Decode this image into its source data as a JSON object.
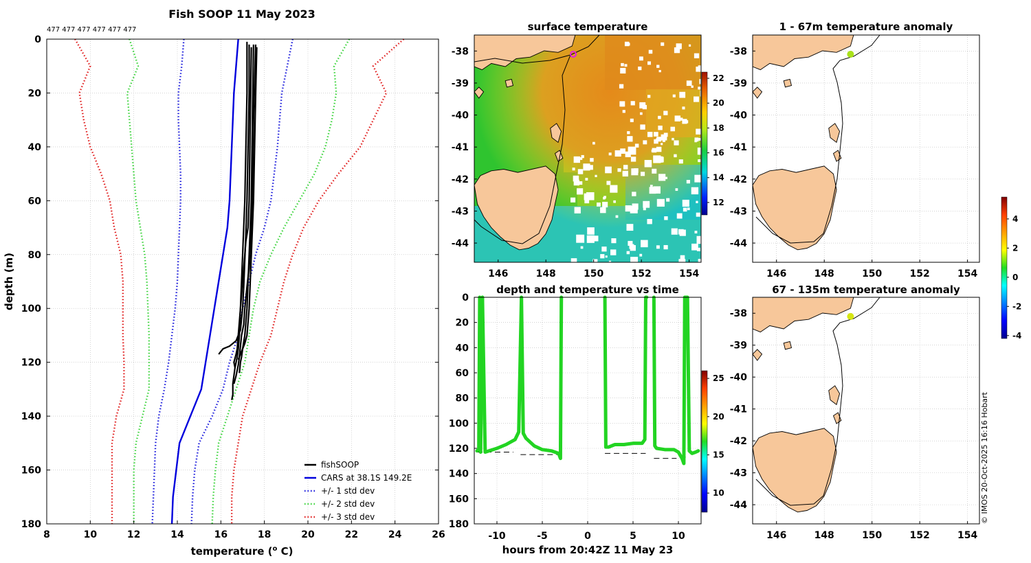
{
  "colors": {
    "cars": "#0000dd",
    "std1": "#1a1adc",
    "std2": "#3ad43a",
    "std3": "#e01a1a",
    "fish": "#000000",
    "land": "#f7c79a",
    "trace": "#22d422",
    "grid": "#b8b8b8"
  },
  "chart_data": [
    {
      "id": "profile",
      "type": "line",
      "title": "Fish SOOP 11 May 2023",
      "xlabel": "temperature (",
      "xlabel_sup": "o",
      "xlabel_tail": " C)",
      "ylabel": "depth (m)",
      "xlim": [
        8,
        26
      ],
      "ylim": [
        0,
        180
      ],
      "xticks": [
        "8",
        "10",
        "12",
        "14",
        "16",
        "18",
        "20",
        "22",
        "24",
        "26"
      ],
      "yticks": [
        "0",
        "20",
        "40",
        "60",
        "80",
        "100",
        "120",
        "140",
        "160",
        "180"
      ],
      "top_annotation": "477 477 477 477 477 477",
      "legend": [
        {
          "label": "fishSOOP",
          "style": "fish"
        },
        {
          "label": "CARS at 38.1S 149.2E",
          "style": "cars"
        },
        {
          "label": "+/- 1 std dev",
          "style": "std1"
        },
        {
          "label": "+/- 2 std dev",
          "style": "std2"
        },
        {
          "label": "+/- 3 std dev",
          "style": "std3"
        }
      ],
      "depths": [
        0,
        10,
        20,
        30,
        40,
        50,
        60,
        70,
        80,
        90,
        100,
        110,
        120,
        130,
        140,
        150,
        160,
        170,
        180
      ],
      "series": [
        {
          "name": "CARS",
          "style": "cars",
          "values": [
            16.8,
            16.7,
            16.6,
            16.55,
            16.5,
            16.45,
            16.4,
            16.3,
            16.1,
            15.9,
            15.7,
            15.5,
            15.3,
            15.1,
            14.6,
            14.1,
            13.95,
            13.8,
            13.75
          ]
        },
        {
          "name": "-1 std",
          "style": "std1",
          "values": [
            14.3,
            14.2,
            14.05,
            14.05,
            14.1,
            14.15,
            14.15,
            14.1,
            14.05,
            14.0,
            13.9,
            13.75,
            13.6,
            13.4,
            13.15,
            13.0,
            12.95,
            12.9,
            12.85
          ]
        },
        {
          "name": "+1 std",
          "style": "std1",
          "values": [
            19.3,
            19.05,
            18.8,
            18.7,
            18.6,
            18.45,
            18.3,
            18.0,
            17.6,
            17.3,
            17.0,
            16.8,
            16.4,
            16.1,
            15.6,
            15.0,
            14.8,
            14.7,
            14.65
          ]
        },
        {
          "name": "-2 std",
          "style": "std2",
          "values": [
            11.8,
            12.2,
            11.7,
            11.8,
            11.9,
            12.0,
            12.1,
            12.3,
            12.5,
            12.6,
            12.65,
            12.7,
            12.7,
            12.7,
            12.4,
            12.1,
            12.0,
            12.0,
            12.0
          ]
        },
        {
          "name": "+2 std",
          "style": "std2",
          "values": [
            21.9,
            21.2,
            21.3,
            21.1,
            20.8,
            20.3,
            19.6,
            18.9,
            18.3,
            17.8,
            17.5,
            17.3,
            17.1,
            16.7,
            16.3,
            15.9,
            15.75,
            15.65,
            15.6
          ]
        },
        {
          "name": "-3 std",
          "style": "std3",
          "values": [
            9.3,
            10.0,
            9.5,
            9.7,
            10.0,
            10.5,
            10.9,
            11.1,
            11.4,
            11.5,
            11.5,
            11.5,
            11.55,
            11.55,
            11.2,
            11.0,
            11.0,
            11.0,
            11.0
          ]
        },
        {
          "name": "+3 std",
          "style": "std3",
          "values": [
            24.4,
            23.0,
            23.6,
            23.0,
            22.4,
            21.4,
            20.5,
            19.8,
            19.3,
            18.9,
            18.6,
            18.3,
            17.8,
            17.4,
            17.0,
            16.8,
            16.6,
            16.5,
            16.5
          ]
        }
      ],
      "fish_casts": [
        {
          "depths": [
            3,
            30,
            60,
            70,
            75,
            80,
            85,
            90,
            95,
            100,
            105,
            110,
            115,
            117,
            120,
            122,
            125,
            128,
            132,
            134
          ],
          "temps": [
            17.4,
            17.35,
            17.3,
            17.25,
            17.15,
            17.1,
            17.05,
            17.0,
            16.95,
            16.9,
            16.85,
            16.8,
            16.75,
            16.7,
            16.6,
            16.65,
            16.6,
            16.55,
            16.55,
            16.5
          ]
        },
        {
          "depths": [
            2,
            30,
            60,
            70,
            78,
            85,
            92,
            100,
            106,
            110,
            114,
            118,
            121,
            123,
            125,
            128
          ],
          "temps": [
            17.6,
            17.5,
            17.45,
            17.4,
            17.35,
            17.3,
            17.2,
            17.1,
            17.05,
            16.95,
            16.9,
            16.85,
            16.8,
            16.75,
            16.7,
            16.6
          ]
        },
        {
          "depths": [
            3,
            20,
            40,
            60,
            70,
            80,
            90,
            100,
            105,
            110,
            113,
            115,
            117,
            119
          ],
          "temps": [
            17.65,
            17.6,
            17.55,
            17.5,
            17.45,
            17.4,
            17.35,
            17.3,
            17.25,
            17.2,
            17.1,
            17.0,
            16.9,
            16.8
          ]
        },
        {
          "depths": [
            2,
            20,
            40,
            60,
            72,
            82,
            92,
            100,
            108,
            112,
            114,
            115,
            116,
            117
          ],
          "temps": [
            17.3,
            17.3,
            17.25,
            17.2,
            17.15,
            17.1,
            17.05,
            17.0,
            16.9,
            16.7,
            16.4,
            16.1,
            16.0,
            15.9
          ]
        },
        {
          "depths": [
            1,
            20,
            40,
            60,
            70,
            80,
            90,
            100,
            110,
            115,
            118,
            120,
            122
          ],
          "temps": [
            17.2,
            17.2,
            17.15,
            17.1,
            17.05,
            17.0,
            16.95,
            16.9,
            16.85,
            16.8,
            16.75,
            16.7,
            16.65
          ]
        },
        {
          "depths": [
            2,
            30,
            60,
            80,
            100,
            110,
            115,
            118,
            120,
            124
          ],
          "temps": [
            17.5,
            17.45,
            17.4,
            17.3,
            17.2,
            17.1,
            17.0,
            16.95,
            16.9,
            16.85
          ]
        }
      ]
    },
    {
      "id": "sst_map",
      "type": "heatmap",
      "title": "surface temperature",
      "lon_range": [
        145,
        154.5
      ],
      "lat_range": [
        -44.6,
        -37.5
      ],
      "xticks": [
        "146",
        "148",
        "150",
        "152",
        "154"
      ],
      "yticks": [
        "-38",
        "-39",
        "-40",
        "-41",
        "-42",
        "-43",
        "-44"
      ],
      "colorbar_range": [
        11,
        22.5
      ],
      "colorbar_ticks": [
        "12",
        "14",
        "16",
        "18",
        "20",
        "22"
      ],
      "marker": {
        "lon": 149.1,
        "lat": -38.1
      }
    },
    {
      "id": "depth_time",
      "type": "scatter",
      "title": "depth and temperature vs time",
      "xlabel": "hours from 20:42Z 11 May 23",
      "xlim": [
        -12.5,
        12.5
      ],
      "ylim": [
        0,
        180
      ],
      "xticks": [
        "-10",
        "-5",
        "0",
        "5",
        "10"
      ],
      "yticks": [
        "0",
        "20",
        "40",
        "60",
        "80",
        "100",
        "120",
        "140",
        "160",
        "180"
      ],
      "colorbar_range": [
        7.5,
        26
      ],
      "colorbar_ticks": [
        "10",
        "15",
        "20",
        "25"
      ],
      "segments": [
        {
          "t": [
            -12.2,
            -12.0,
            -11.9,
            -11.8,
            -11.6
          ],
          "d": [
            122,
            121,
            0,
            123,
            0
          ]
        },
        {
          "t": [
            -11.6,
            -11.3,
            -10,
            -9,
            -8,
            -7.6,
            -7.3,
            -7.1,
            -6.8,
            -5.9,
            -5,
            -4,
            -3.2,
            -3,
            -2.9
          ],
          "d": [
            0,
            123,
            120,
            117,
            113,
            107,
            0,
            108,
            112,
            118,
            121,
            122,
            124,
            128,
            0
          ]
        },
        {
          "t": [
            1.9,
            2.0,
            2.3,
            3,
            4,
            5,
            6,
            6.3,
            6.4,
            6.5
          ],
          "d": [
            0,
            119,
            119,
            117,
            117,
            116,
            116,
            113,
            0,
            0
          ]
        },
        {
          "t": [
            7.3,
            7.4,
            7.6,
            8.5,
            9.5,
            10,
            10.4,
            10.6,
            10.7,
            10.8,
            11.0,
            11.2,
            11.5,
            11.9,
            12.2
          ],
          "d": [
            0,
            118,
            120,
            121,
            121,
            123,
            128,
            132,
            0,
            0,
            0,
            122,
            124,
            123,
            122
          ]
        }
      ],
      "bottom_lines": [
        {
          "t": [
            -12.2,
            -8.2
          ],
          "d": 123
        },
        {
          "t": [
            -7.4,
            -2.9
          ],
          "d": 125
        },
        {
          "t": [
            1.9,
            6.4
          ],
          "d": 124
        },
        {
          "t": [
            7.3,
            9.8
          ],
          "d": 128
        },
        {
          "t": [
            10.2,
            10.9
          ],
          "d": 127
        }
      ]
    },
    {
      "id": "anom_upper",
      "type": "heatmap",
      "title": "1 - 67m temperature anomaly",
      "lon_range": [
        145,
        154.5
      ],
      "lat_range": [
        -44.6,
        -37.5
      ],
      "xticks": [
        "146",
        "148",
        "150",
        "152",
        "154"
      ],
      "yticks": [
        "-38",
        "-39",
        "-40",
        "-41",
        "-42",
        "-43",
        "-44"
      ],
      "marker": {
        "lon": 149.1,
        "lat": -38.1,
        "color": "#a9e21a"
      }
    },
    {
      "id": "anom_lower",
      "type": "heatmap",
      "title": "67 - 135m temperature anomaly",
      "lon_range": [
        145,
        154.5
      ],
      "lat_range": [
        -44.6,
        -37.5
      ],
      "xticks": [
        "146",
        "148",
        "150",
        "152",
        "154"
      ],
      "yticks": [
        "-38",
        "-39",
        "-40",
        "-41",
        "-42",
        "-43",
        "-44"
      ],
      "marker": {
        "lon": 149.1,
        "lat": -38.1,
        "color": "#d6e614"
      },
      "colorbar_range": [
        -4.2,
        5.5
      ],
      "colorbar_ticks": [
        "-4",
        "-2",
        "0",
        "2",
        "4"
      ]
    }
  ],
  "credit": "© IMOS 20-Oct-2025 16:16 Hobart"
}
